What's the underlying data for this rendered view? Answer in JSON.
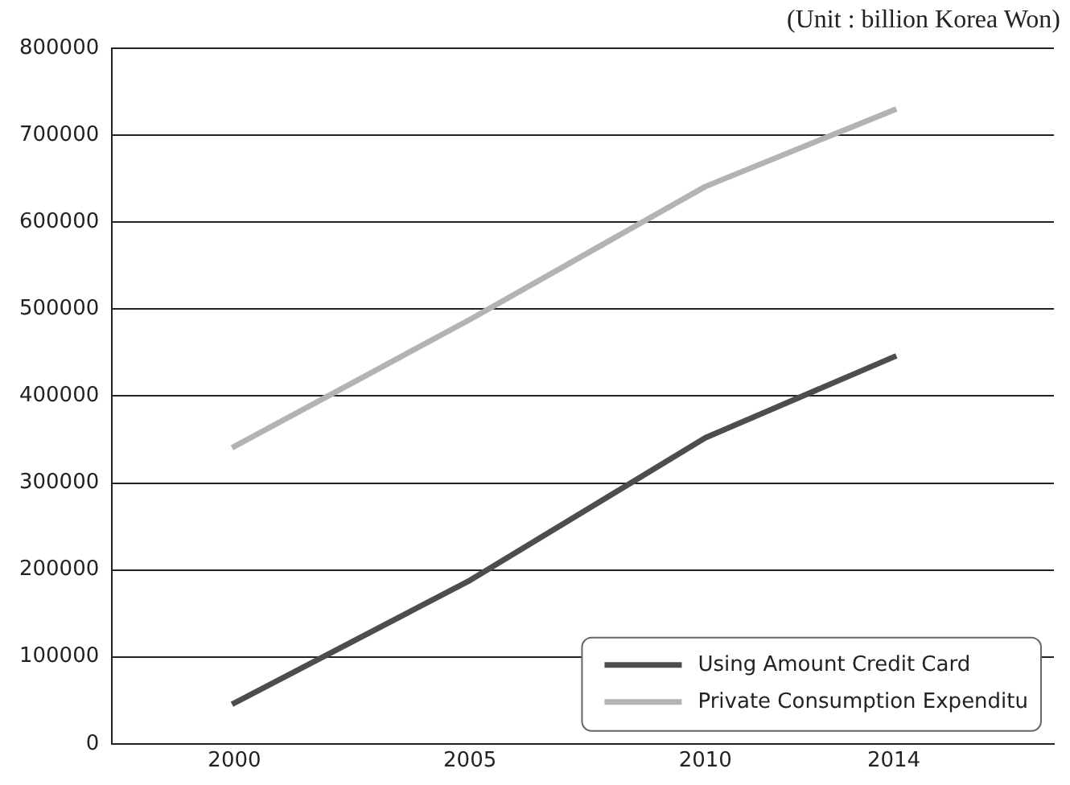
{
  "chart_data": {
    "type": "line",
    "annotations": [
      "(Unit : billion Korea Won)"
    ],
    "x": [
      2000,
      2005,
      2010,
      2014
    ],
    "series": [
      {
        "name": "Using Amount Credit Card",
        "color": "#4d4d4d",
        "values": [
          47000,
          188000,
          352000,
          445000
        ]
      },
      {
        "name": "Private Consumption Expenditu",
        "color": "#b3b3b3",
        "values": [
          342000,
          488000,
          641000,
          729000
        ]
      }
    ],
    "xlim": [
      1997.4,
      2017.4
    ],
    "xticks": [
      2000,
      2005,
      2010,
      2014
    ],
    "ylim": [
      0,
      800000
    ],
    "yticks": [
      0,
      100000,
      200000,
      300000,
      400000,
      500000,
      600000,
      700000,
      800000
    ],
    "grid": "y",
    "legend": "bottom right",
    "marker": "none",
    "line_style": "solid"
  }
}
